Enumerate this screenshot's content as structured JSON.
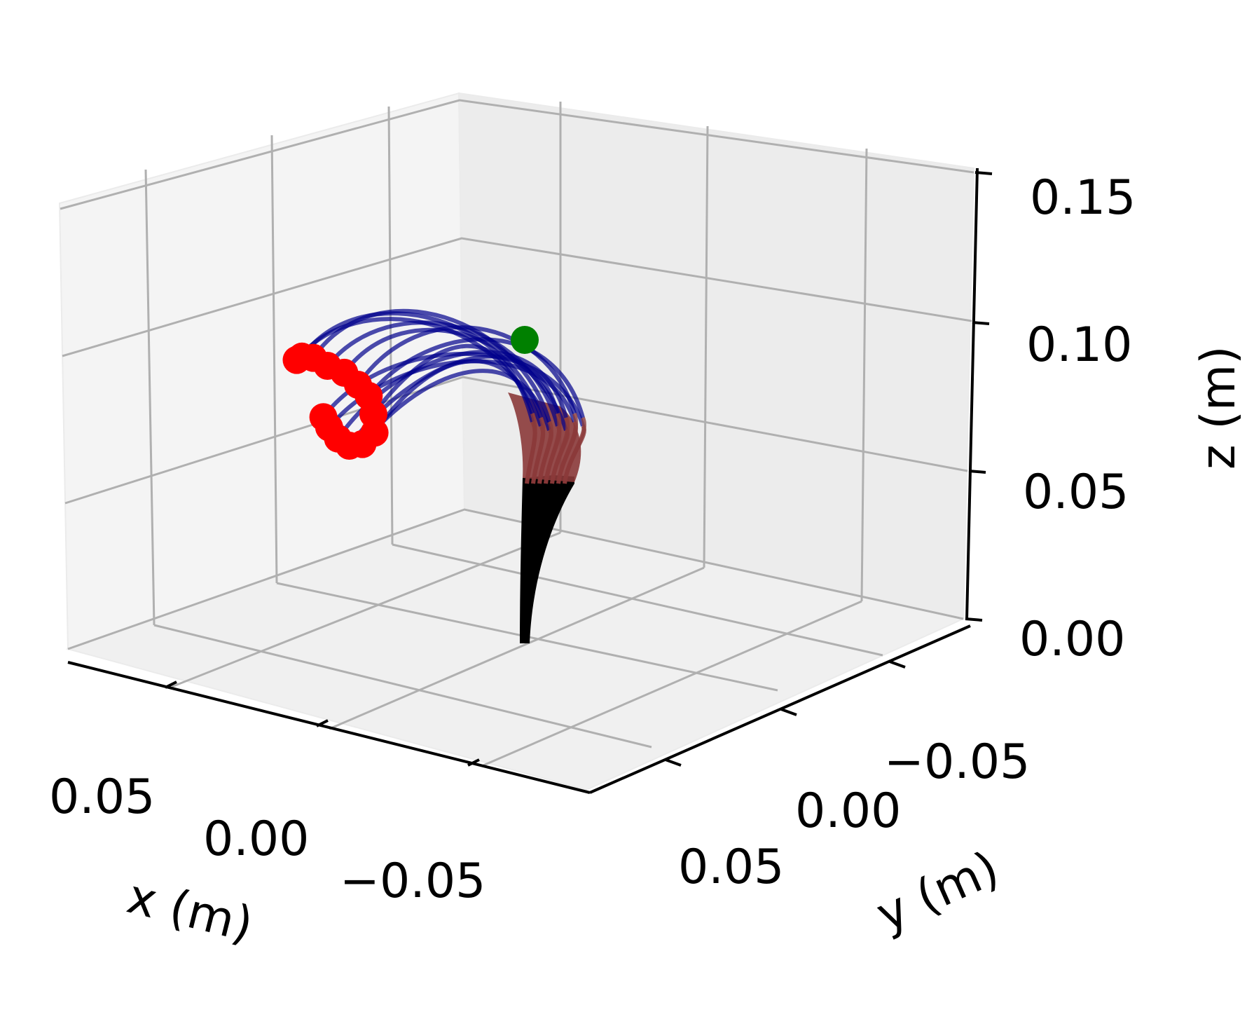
{
  "chart_data": {
    "type": "scatter",
    "subtype": "3d-line",
    "title": "",
    "xlabel": "x (m)",
    "ylabel": "y (m)",
    "zlabel": "z (m)",
    "xlim": [
      -0.08,
      0.08
    ],
    "ylim": [
      -0.08,
      0.08
    ],
    "zlim": [
      0.0,
      0.15
    ],
    "x_ticks": [
      "0.05",
      "0.00",
      "−0.05"
    ],
    "y_ticks": [
      "−0.05",
      "0.00",
      "0.05"
    ],
    "z_ticks": [
      "0.00",
      "0.05",
      "0.10",
      "0.15"
    ],
    "grid": true,
    "colors": {
      "base_section": "#000000",
      "middle_section": "#8b3a3a",
      "distal_section": "#00008b",
      "tip_markers": "#ff0000",
      "target_marker": "#008000",
      "pane": "#f2f2f2",
      "grid": "#b0b0b0"
    },
    "target_point": {
      "x": 0.0,
      "y": 0.03,
      "z": 0.12
    },
    "tip_points": [
      {
        "x": 0.065,
        "y": -0.012,
        "z": 0.082
      },
      {
        "x": 0.06,
        "y": -0.016,
        "z": 0.086
      },
      {
        "x": 0.053,
        "y": -0.02,
        "z": 0.089
      },
      {
        "x": 0.045,
        "y": -0.024,
        "z": 0.09
      },
      {
        "x": 0.037,
        "y": -0.027,
        "z": 0.091
      },
      {
        "x": 0.03,
        "y": -0.03,
        "z": 0.09
      },
      {
        "x": 0.024,
        "y": -0.033,
        "z": 0.089
      },
      {
        "x": 0.02,
        "y": -0.036,
        "z": 0.085
      },
      {
        "x": 0.018,
        "y": -0.038,
        "z": 0.08
      },
      {
        "x": 0.022,
        "y": -0.038,
        "z": 0.075
      },
      {
        "x": 0.028,
        "y": -0.036,
        "z": 0.072
      },
      {
        "x": 0.035,
        "y": -0.032,
        "z": 0.071
      },
      {
        "x": 0.042,
        "y": -0.027,
        "z": 0.071
      },
      {
        "x": 0.048,
        "y": -0.022,
        "z": 0.071
      }
    ]
  }
}
